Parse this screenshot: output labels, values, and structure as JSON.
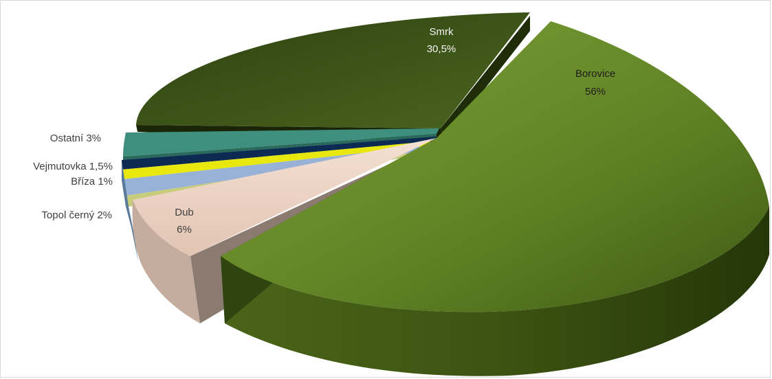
{
  "chart_data": {
    "type": "pie",
    "style": "3d-exploded",
    "slices": [
      {
        "name": "Borovice",
        "value": 56,
        "value_label": "56%",
        "color": "#6a8d2a"
      },
      {
        "name": "Dub",
        "value": 6,
        "value_label": "6%",
        "color": "#ecd2c3"
      },
      {
        "name": "Topol černý",
        "value": 2,
        "value_label": "2%",
        "color": "#c6cc7a"
      },
      {
        "name": "Bříza",
        "value": 1,
        "value_label": "1%",
        "color": "#98b1d6"
      },
      {
        "name": "Vejmutovka",
        "value": 1.5,
        "value_label": "1,5%",
        "color": "#e8e80e"
      },
      {
        "name": "Ostatní",
        "value": 3,
        "value_label": "3%",
        "color": "#3e8f7d"
      },
      {
        "name": "Smrk",
        "value": 30.5,
        "value_label": "30,5%",
        "color": "#3e5517"
      }
    ],
    "extra_band_color": "#0d2a52"
  }
}
